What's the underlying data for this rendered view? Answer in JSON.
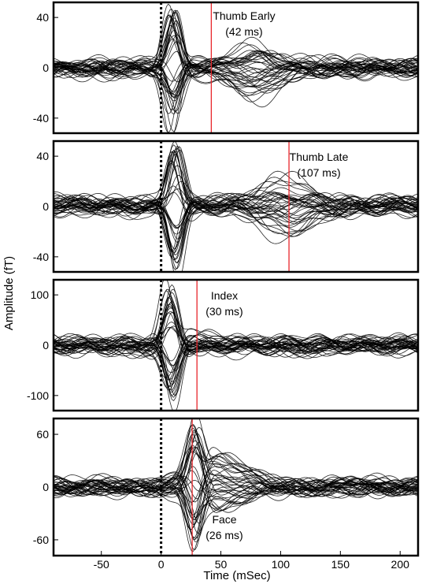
{
  "figure": {
    "ylabel": "Amplitude (fT)",
    "xlabel": "Time (mSec)"
  },
  "chart_data": [
    {
      "type": "line",
      "annotation": {
        "label_line1": "Thumb Early",
        "label_line2": "(42 ms)",
        "latency_ms": 42
      },
      "stimulus_ms": 0,
      "xlim": [
        -90,
        215
      ],
      "ylim": [
        -52,
        52
      ],
      "yticks": [
        40,
        0,
        -40
      ],
      "xticks": [],
      "peak_amplitude": 48,
      "peak_latency_ms": 10,
      "late_amplitude": 22,
      "late_latency_ms": 78,
      "n_traces": 40,
      "grid": false,
      "color": "#000000",
      "marker_color": "#e8262b"
    },
    {
      "type": "line",
      "annotation": {
        "label_line1": "Thumb Late",
        "label_line2": "(107 ms)",
        "latency_ms": 107
      },
      "stimulus_ms": 0,
      "xlim": [
        -90,
        215
      ],
      "ylim": [
        -52,
        52
      ],
      "yticks": [
        40,
        0,
        -40
      ],
      "xticks": [],
      "peak_amplitude": 50,
      "peak_latency_ms": 12,
      "late_amplitude": 25,
      "late_latency_ms": 105,
      "n_traces": 40,
      "grid": false,
      "color": "#000000",
      "marker_color": "#e8262b"
    },
    {
      "type": "line",
      "annotation": {
        "label_line1": "Index",
        "label_line2": "(30 ms)",
        "latency_ms": 30
      },
      "stimulus_ms": 0,
      "xlim": [
        -90,
        215
      ],
      "ylim": [
        -130,
        130
      ],
      "yticks": [
        100,
        0,
        -100
      ],
      "xticks": [],
      "peak_amplitude": 120,
      "peak_latency_ms": 8,
      "late_amplitude": 12,
      "late_latency_ms": 35,
      "n_traces": 40,
      "grid": false,
      "color": "#000000",
      "marker_color": "#e8262b"
    },
    {
      "type": "line",
      "annotation": {
        "label_line1": "Face",
        "label_line2": "(26 ms)",
        "latency_ms": 26
      },
      "stimulus_ms": 0,
      "xlim": [
        -90,
        215
      ],
      "ylim": [
        -78,
        78
      ],
      "yticks": [
        60,
        0,
        -60
      ],
      "xticks": [
        -50,
        0,
        50,
        100,
        150,
        200
      ],
      "peak_amplitude": 70,
      "peak_latency_ms": 28,
      "late_amplitude": 35,
      "late_latency_ms": 48,
      "n_traces": 40,
      "grid": false,
      "color": "#000000",
      "marker_color": "#e8262b"
    }
  ]
}
